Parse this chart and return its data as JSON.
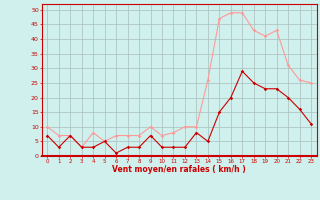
{
  "hours": [
    0,
    1,
    2,
    3,
    4,
    5,
    6,
    7,
    8,
    9,
    10,
    11,
    12,
    13,
    14,
    15,
    16,
    17,
    18,
    19,
    20,
    21,
    22,
    23
  ],
  "vent_moyen": [
    7,
    3,
    7,
    3,
    3,
    5,
    1,
    3,
    3,
    7,
    3,
    3,
    3,
    8,
    5,
    15,
    20,
    29,
    25,
    23,
    23,
    20,
    16,
    11
  ],
  "en_rafales": [
    10,
    7,
    7,
    3,
    8,
    5,
    7,
    7,
    7,
    10,
    7,
    8,
    10,
    10,
    26,
    47,
    49,
    49,
    43,
    41,
    43,
    31,
    26,
    25
  ],
  "xlabel": "Vent moyen/en rafales ( km/h )",
  "yticks": [
    0,
    5,
    10,
    15,
    20,
    25,
    30,
    35,
    40,
    45,
    50
  ],
  "xticks": [
    0,
    1,
    2,
    3,
    4,
    5,
    6,
    7,
    8,
    9,
    10,
    11,
    12,
    13,
    14,
    15,
    16,
    17,
    18,
    19,
    20,
    21,
    22,
    23
  ],
  "bg_color": "#cff0ec",
  "grid_color": "#aabfbc",
  "line1_color": "#cc0000",
  "line2_color": "#ff9999",
  "xlabel_color": "#cc0000",
  "tick_color": "#cc0000",
  "spine_color": "#cc0000",
  "ylim": [
    0,
    52
  ],
  "xlim": [
    -0.5,
    23.5
  ]
}
